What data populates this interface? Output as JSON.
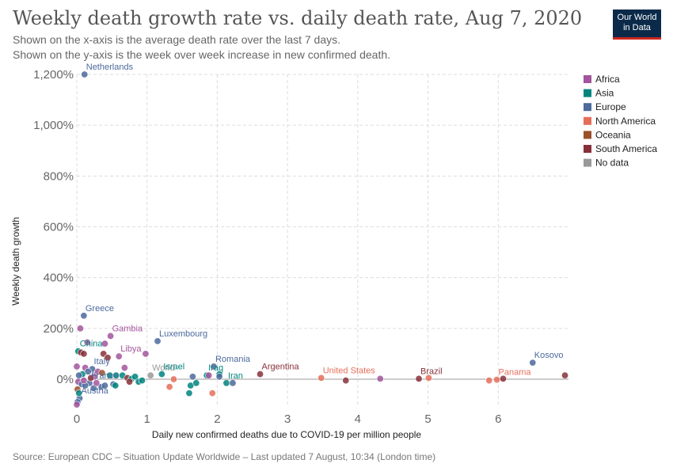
{
  "header": {
    "title": "Weekly death growth rate vs. daily death rate, Aug 7, 2020",
    "subtitle_1": "Shown on the x-axis is the average death rate over the last 7 days.",
    "subtitle_2": "Shown on the y-axis is the week over week increase in new confirmed death.",
    "logo_line1": "Our World",
    "logo_line2": "in Data"
  },
  "footer": {
    "source": "Source: European CDC – Situation Update Worldwide – Last updated 7 August, 10:34 (London time)"
  },
  "colors": {
    "Africa": "#a2559c",
    "Asia": "#00847e",
    "Europe": "#4c6a9c",
    "North America": "#e56e5a",
    "Oceania": "#9a5129",
    "South America": "#883039",
    "No data": "#999999"
  },
  "chart_data": {
    "type": "scatter",
    "title": "Weekly death growth rate vs. daily death rate, Aug 7, 2020",
    "xlabel": "Daily new confirmed deaths due to COVID-19 per million people",
    "ylabel": "Weekly death growth",
    "xlim": [
      0,
      7
    ],
    "ylim": [
      -100,
      1200
    ],
    "x_ticks": [
      0,
      1,
      2,
      3,
      4,
      5,
      6
    ],
    "x_tick_labels": [
      "0",
      "1",
      "2",
      "3",
      "4",
      "5",
      "6"
    ],
    "y_ticks": [
      0,
      200,
      400,
      600,
      800,
      1000,
      1200
    ],
    "y_tick_labels": [
      "0%",
      "200%",
      "400%",
      "600%",
      "800%",
      "1,000%",
      "1,200%"
    ],
    "grid": true,
    "legend_position": "right",
    "legend": [
      "Africa",
      "Asia",
      "Europe",
      "North America",
      "Oceania",
      "South America",
      "No data"
    ],
    "points": [
      {
        "x": 0.11,
        "y": 1200,
        "region": "Europe",
        "label": "Netherlands"
      },
      {
        "x": 0.1,
        "y": 250,
        "region": "Europe",
        "label": "Greece"
      },
      {
        "x": 0.48,
        "y": 170,
        "region": "Africa",
        "label": "Gambia"
      },
      {
        "x": 1.15,
        "y": 150,
        "region": "Europe",
        "label": "Luxembourg"
      },
      {
        "x": 0.02,
        "y": 110,
        "region": "Asia",
        "label": "China"
      },
      {
        "x": 0.6,
        "y": 90,
        "region": "Africa",
        "label": "Libya"
      },
      {
        "x": 1.95,
        "y": 50,
        "region": "Europe",
        "label": "Romania"
      },
      {
        "x": 0.22,
        "y": 40,
        "region": "Europe",
        "label": "Italy"
      },
      {
        "x": 2.61,
        "y": 20,
        "region": "South America",
        "label": "Argentina"
      },
      {
        "x": 3.48,
        "y": 5,
        "region": "North America",
        "label": "United States"
      },
      {
        "x": 4.87,
        "y": 2,
        "region": "South America",
        "label": "Brazil"
      },
      {
        "x": 6.49,
        "y": 65,
        "region": "Europe",
        "label": "Kosovo"
      },
      {
        "x": 5.98,
        "y": -2,
        "region": "North America",
        "label": "Panama"
      },
      {
        "x": 1.05,
        "y": 15,
        "region": "No data",
        "label": "World"
      },
      {
        "x": 1.21,
        "y": 20,
        "region": "Asia",
        "label": "Israel"
      },
      {
        "x": 1.85,
        "y": 15,
        "region": "Asia",
        "label": "Iraq"
      },
      {
        "x": 2.13,
        "y": -15,
        "region": "Asia",
        "label": "Iran"
      },
      {
        "x": 0.18,
        "y": -15,
        "region": "Europe",
        "label": "France"
      },
      {
        "x": 0.04,
        "y": -75,
        "region": "Europe",
        "label": "Austria"
      },
      {
        "x": 0.05,
        "y": 200,
        "region": "Africa"
      },
      {
        "x": 0.15,
        "y": 145,
        "region": "Africa"
      },
      {
        "x": 0.4,
        "y": 140,
        "region": "Africa"
      },
      {
        "x": 0.06,
        "y": 105,
        "region": "South America"
      },
      {
        "x": 0.1,
        "y": 100,
        "region": "South America"
      },
      {
        "x": 0.38,
        "y": 100,
        "region": "South America"
      },
      {
        "x": 0.44,
        "y": 85,
        "region": "South America"
      },
      {
        "x": 0.98,
        "y": 100,
        "region": "Africa"
      },
      {
        "x": 0.0,
        "y": 50,
        "region": "Africa"
      },
      {
        "x": 0.12,
        "y": 45,
        "region": "Africa"
      },
      {
        "x": 0.68,
        "y": 45,
        "region": "Africa"
      },
      {
        "x": 0.3,
        "y": 30,
        "region": "Africa"
      },
      {
        "x": 0.08,
        "y": 20,
        "region": "Asia"
      },
      {
        "x": 0.03,
        "y": 15,
        "region": "Europe"
      },
      {
        "x": 0.25,
        "y": 10,
        "region": "Africa"
      },
      {
        "x": 0.36,
        "y": 25,
        "region": "Oceania"
      },
      {
        "x": 0.47,
        "y": 15,
        "region": "Asia"
      },
      {
        "x": 0.56,
        "y": 15,
        "region": "Asia"
      },
      {
        "x": 0.65,
        "y": 15,
        "region": "Asia"
      },
      {
        "x": 0.72,
        "y": 5,
        "region": "South America"
      },
      {
        "x": 0.78,
        "y": 2,
        "region": "Asia"
      },
      {
        "x": 0.83,
        "y": 10,
        "region": "Asia"
      },
      {
        "x": 0.88,
        "y": -10,
        "region": "Asia"
      },
      {
        "x": 0.93,
        "y": -5,
        "region": "Asia"
      },
      {
        "x": 0.75,
        "y": -10,
        "region": "South America"
      },
      {
        "x": 0.52,
        "y": -20,
        "region": "Europe"
      },
      {
        "x": 0.55,
        "y": -25,
        "region": "Asia"
      },
      {
        "x": 0.35,
        "y": -30,
        "region": "Europe"
      },
      {
        "x": 0.4,
        "y": -25,
        "region": "Europe"
      },
      {
        "x": 0.02,
        "y": -10,
        "region": "Africa"
      },
      {
        "x": 0.07,
        "y": -20,
        "region": "Europe"
      },
      {
        "x": 0.12,
        "y": -25,
        "region": "Europe"
      },
      {
        "x": 0.24,
        "y": -35,
        "region": "Europe"
      },
      {
        "x": 0.01,
        "y": -40,
        "region": "Oceania"
      },
      {
        "x": 0.03,
        "y": -55,
        "region": "Asia"
      },
      {
        "x": 0.01,
        "y": -90,
        "region": "Europe"
      },
      {
        "x": 0.0,
        "y": -100,
        "region": "Africa"
      },
      {
        "x": 0.16,
        "y": 30,
        "region": "Europe"
      },
      {
        "x": 0.1,
        "y": -5,
        "region": "Africa"
      },
      {
        "x": 0.2,
        "y": 5,
        "region": "South America"
      },
      {
        "x": 0.28,
        "y": -15,
        "region": "Africa"
      },
      {
        "x": 1.38,
        "y": 0,
        "region": "North America"
      },
      {
        "x": 1.32,
        "y": -30,
        "region": "North America"
      },
      {
        "x": 1.65,
        "y": 10,
        "region": "Europe"
      },
      {
        "x": 1.62,
        "y": -25,
        "region": "Asia"
      },
      {
        "x": 1.7,
        "y": -15,
        "region": "Asia"
      },
      {
        "x": 1.6,
        "y": -55,
        "region": "Asia"
      },
      {
        "x": 1.93,
        "y": -55,
        "region": "North America"
      },
      {
        "x": 2.03,
        "y": 20,
        "region": "Asia"
      },
      {
        "x": 2.03,
        "y": 10,
        "region": "Europe"
      },
      {
        "x": 2.22,
        "y": -15,
        "region": "Europe"
      },
      {
        "x": 1.88,
        "y": 15,
        "region": "Africa"
      },
      {
        "x": 3.83,
        "y": -5,
        "region": "South America"
      },
      {
        "x": 4.32,
        "y": 2,
        "region": "Africa"
      },
      {
        "x": 5.01,
        "y": 5,
        "region": "North America"
      },
      {
        "x": 5.87,
        "y": -5,
        "region": "North America"
      },
      {
        "x": 6.07,
        "y": 2,
        "region": "South America"
      },
      {
        "x": 6.95,
        "y": 15,
        "region": "South America"
      }
    ]
  }
}
